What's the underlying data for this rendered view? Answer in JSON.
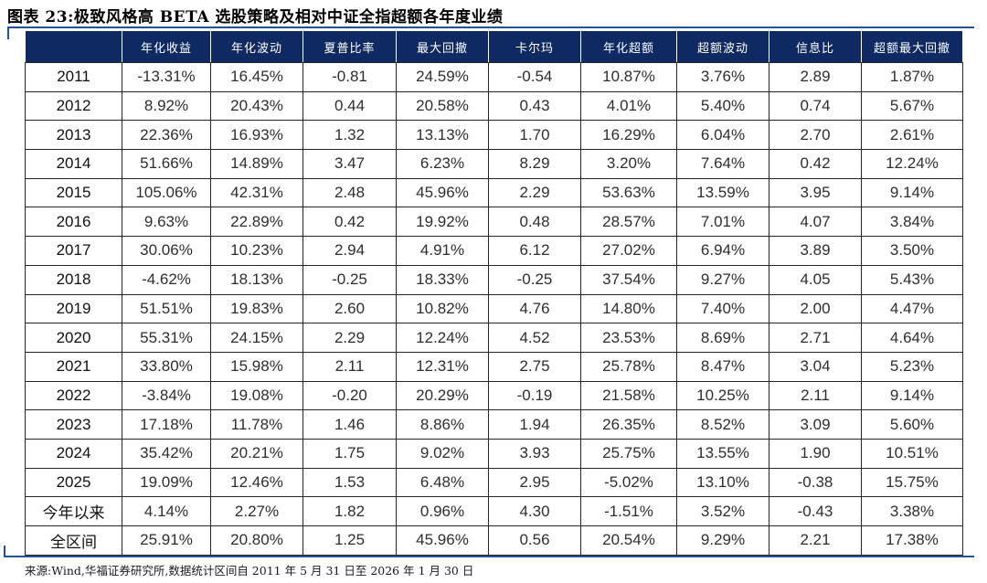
{
  "page": {
    "title": "图表 23:极致风格高 BETA 选股策略及相对中证全指超额各年度业绩",
    "source_note": "来源:Wind,华福证券研究所,数据统计区间自 2011 年 5 月 31 日至 2026 年 1 月 30 日"
  },
  "colors": {
    "header_bg": "#0f2a63",
    "rule_blue": "#23509b",
    "cell_border": "#262626",
    "header_text": "#ffffff",
    "body_text": "#2e2e2e"
  },
  "table": {
    "columns": [
      "",
      "年化收益",
      "年化波动",
      "夏普比率",
      "最大回撤",
      "卡尔玛",
      "年化超额",
      "超额波动",
      "信息比",
      "超额最大回撤"
    ],
    "rows": [
      {
        "label": "2011",
        "values": [
          "-13.31%",
          "16.45%",
          "-0.81",
          "24.59%",
          "-0.54",
          "10.87%",
          "3.76%",
          "2.89",
          "1.87%"
        ]
      },
      {
        "label": "2012",
        "values": [
          "8.92%",
          "20.43%",
          "0.44",
          "20.58%",
          "0.43",
          "4.01%",
          "5.40%",
          "0.74",
          "5.67%"
        ]
      },
      {
        "label": "2013",
        "values": [
          "22.36%",
          "16.93%",
          "1.32",
          "13.13%",
          "1.70",
          "16.29%",
          "6.04%",
          "2.70",
          "2.61%"
        ]
      },
      {
        "label": "2014",
        "values": [
          "51.66%",
          "14.89%",
          "3.47",
          "6.23%",
          "8.29",
          "3.20%",
          "7.64%",
          "0.42",
          "12.24%"
        ]
      },
      {
        "label": "2015",
        "values": [
          "105.06%",
          "42.31%",
          "2.48",
          "45.96%",
          "2.29",
          "53.63%",
          "13.59%",
          "3.95",
          "9.14%"
        ]
      },
      {
        "label": "2016",
        "values": [
          "9.63%",
          "22.89%",
          "0.42",
          "19.92%",
          "0.48",
          "28.57%",
          "7.01%",
          "4.07",
          "3.84%"
        ]
      },
      {
        "label": "2017",
        "values": [
          "30.06%",
          "10.23%",
          "2.94",
          "4.91%",
          "6.12",
          "27.02%",
          "6.94%",
          "3.89",
          "3.50%"
        ]
      },
      {
        "label": "2018",
        "values": [
          "-4.62%",
          "18.13%",
          "-0.25",
          "18.33%",
          "-0.25",
          "37.54%",
          "9.27%",
          "4.05",
          "5.43%"
        ]
      },
      {
        "label": "2019",
        "values": [
          "51.51%",
          "19.83%",
          "2.60",
          "10.82%",
          "4.76",
          "14.80%",
          "7.40%",
          "2.00",
          "4.47%"
        ]
      },
      {
        "label": "2020",
        "values": [
          "55.31%",
          "24.15%",
          "2.29",
          "12.24%",
          "4.52",
          "23.53%",
          "8.69%",
          "2.71",
          "4.64%"
        ]
      },
      {
        "label": "2021",
        "values": [
          "33.80%",
          "15.98%",
          "2.11",
          "12.31%",
          "2.75",
          "25.78%",
          "8.47%",
          "3.04",
          "5.23%"
        ]
      },
      {
        "label": "2022",
        "values": [
          "-3.84%",
          "19.08%",
          "-0.20",
          "20.29%",
          "-0.19",
          "21.58%",
          "10.25%",
          "2.11",
          "9.14%"
        ]
      },
      {
        "label": "2023",
        "values": [
          "17.18%",
          "11.78%",
          "1.46",
          "8.86%",
          "1.94",
          "26.35%",
          "8.52%",
          "3.09",
          "5.60%"
        ]
      },
      {
        "label": "2024",
        "values": [
          "35.42%",
          "20.21%",
          "1.75",
          "9.02%",
          "3.93",
          "25.75%",
          "13.55%",
          "1.90",
          "10.51%"
        ]
      },
      {
        "label": "2025",
        "values": [
          "19.09%",
          "12.46%",
          "1.53",
          "6.48%",
          "2.95",
          "-5.02%",
          "13.10%",
          "-0.38",
          "15.75%"
        ]
      },
      {
        "label": "今年以来",
        "values": [
          "4.14%",
          "2.27%",
          "1.82",
          "0.96%",
          "4.30",
          "-1.51%",
          "3.52%",
          "-0.43",
          "3.38%"
        ]
      },
      {
        "label": "全区间",
        "values": [
          "25.91%",
          "20.80%",
          "1.25",
          "45.96%",
          "0.56",
          "20.54%",
          "9.29%",
          "2.21",
          "17.38%"
        ]
      }
    ]
  }
}
